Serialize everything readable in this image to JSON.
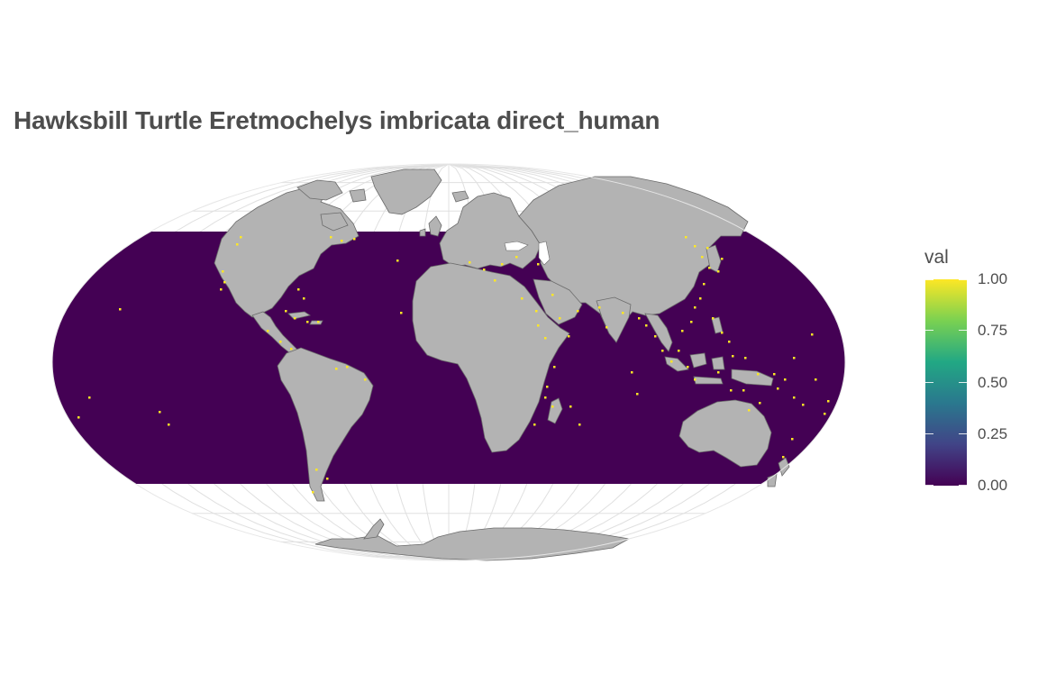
{
  "title": "Hawksbill Turtle Eretmochelys imbricata direct_human",
  "legend": {
    "title": "val",
    "ticks": [
      "0.00",
      "0.25",
      "0.50",
      "0.75",
      "1.00"
    ],
    "tick_values": [
      0,
      0.25,
      0.5,
      0.75,
      1
    ],
    "range": [
      0,
      1
    ],
    "palette": "viridis",
    "colors": [
      "#440154",
      "#414487",
      "#2a788e",
      "#22a884",
      "#7ad151",
      "#fde725"
    ]
  },
  "map": {
    "projection": "mollweide",
    "ocean_color": "#440154",
    "land_color": "#b3b3b3",
    "graticule_color": "#e0e0e0",
    "highlight_color": "#fde725",
    "raster_extent_lat": [
      -60,
      60
    ]
  }
}
